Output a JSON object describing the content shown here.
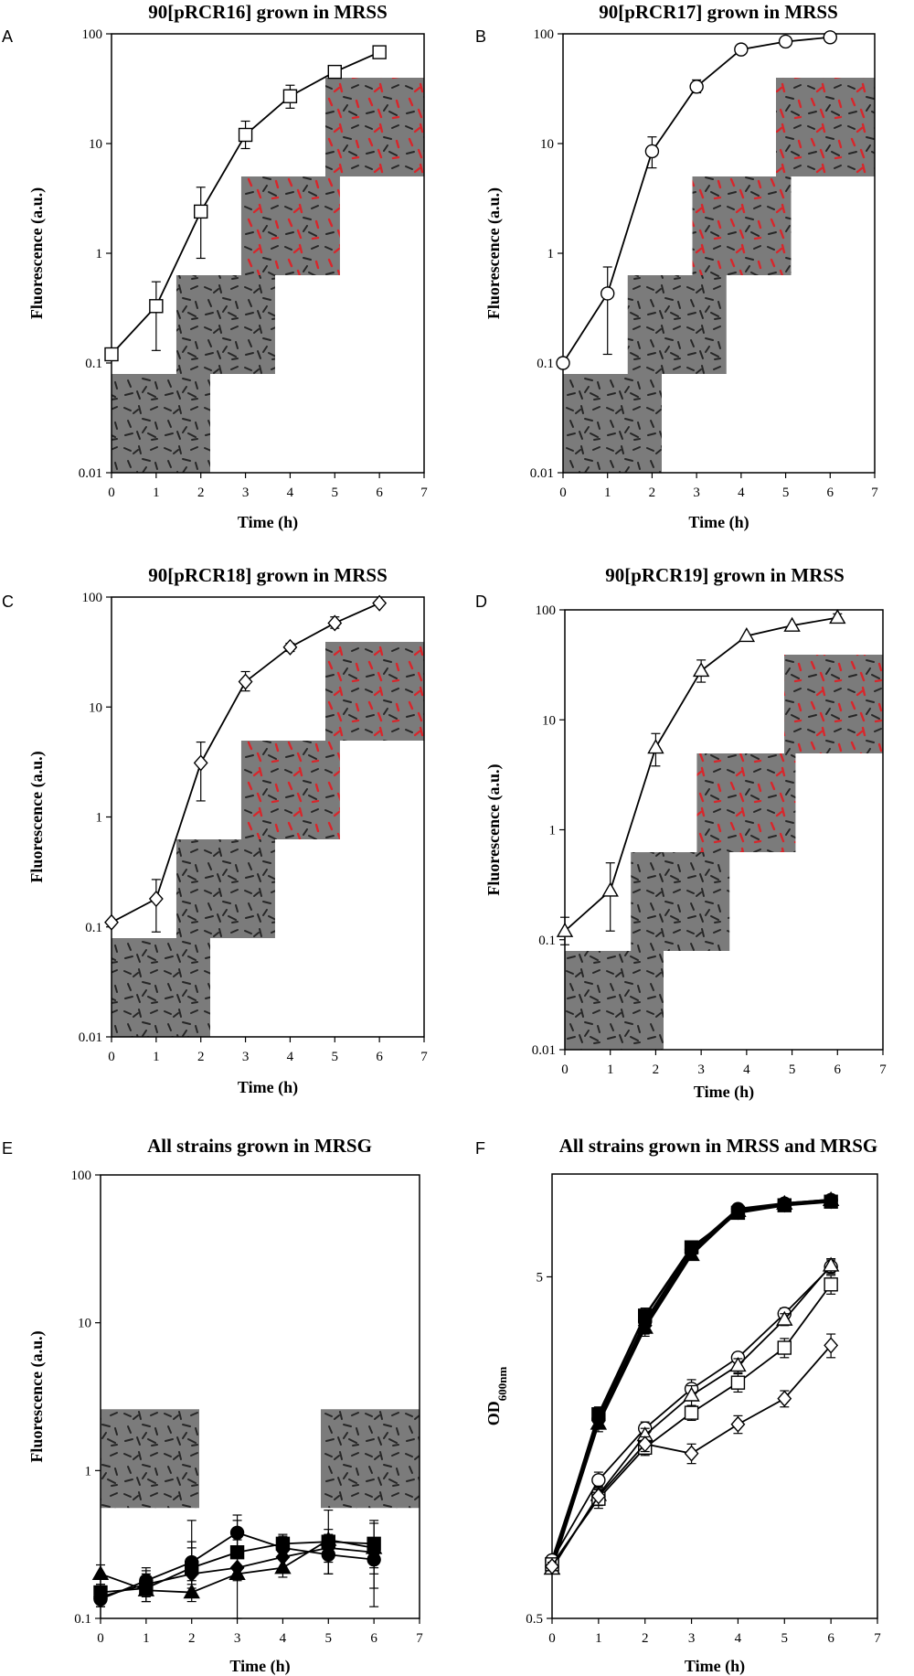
{
  "figure": {
    "colors": {
      "line": "#000000",
      "filled_marker": "#000000",
      "open_marker": "#ffffff",
      "micro_bg": "#7b7b7b",
      "cell_dark": "#262626",
      "cell_red": "#d8262b"
    }
  },
  "chart_data": [
    {
      "id": "A",
      "panel_label": "A",
      "type": "line",
      "title": "90[pRCR16] grown in MRSS",
      "xlabel": "Time (h)",
      "ylabel": "Fluorescence (a.u.)",
      "xlim": [
        0,
        7
      ],
      "ylim": [
        0.01,
        100
      ],
      "yscale": "log",
      "x_ticks": [
        0,
        1,
        2,
        3,
        4,
        5,
        6,
        7
      ],
      "x_tick_labels": [
        "0",
        "1",
        "2",
        "3",
        "4",
        "5",
        "6",
        "7"
      ],
      "y_ticks": [
        0.01,
        0.1,
        1,
        10,
        100
      ],
      "y_tick_labels": [
        "0.01",
        "0.1",
        "1",
        "10",
        "100"
      ],
      "series": [
        {
          "name": "90[pRCR16]",
          "marker": "square",
          "filled": false,
          "x": [
            0,
            1,
            2,
            3,
            4,
            5,
            6
          ],
          "values": [
            0.12,
            0.33,
            2.4,
            12,
            27,
            45,
            68
          ],
          "err_low": [
            0.12,
            0.13,
            0.9,
            9,
            21,
            45,
            68
          ],
          "err_high": [
            0.12,
            0.55,
            4.0,
            16,
            34,
            45,
            68
          ]
        }
      ],
      "micrographs": [
        {
          "time": 0,
          "red": 0
        },
        {
          "time": 1,
          "red": 0
        },
        {
          "time": 2,
          "red": 0.45
        },
        {
          "time": 6,
          "red": 0.9
        }
      ]
    },
    {
      "id": "B",
      "panel_label": "B",
      "type": "line",
      "title": "90[pRCR17] grown in MRSS",
      "xlabel": "Time (h)",
      "ylabel": "Fluorescence (a.u.)",
      "xlim": [
        0,
        7
      ],
      "ylim": [
        0.01,
        100
      ],
      "yscale": "log",
      "x_ticks": [
        0,
        1,
        2,
        3,
        4,
        5,
        6,
        7
      ],
      "x_tick_labels": [
        "0",
        "1",
        "2",
        "3",
        "4",
        "5",
        "6",
        "7"
      ],
      "y_ticks": [
        0.01,
        0.1,
        1,
        10,
        100
      ],
      "y_tick_labels": [
        "0.01",
        "0.1",
        "1",
        "10",
        "100"
      ],
      "series": [
        {
          "name": "90[pRCR17]",
          "marker": "circle",
          "filled": false,
          "x": [
            0,
            1,
            2,
            3,
            4,
            5,
            6
          ],
          "values": [
            0.1,
            0.43,
            8.5,
            33,
            72,
            85,
            93
          ],
          "err_low": [
            0.1,
            0.12,
            6,
            29,
            72,
            85,
            85
          ],
          "err_high": [
            0.1,
            0.75,
            11.5,
            38,
            72,
            85,
            100
          ]
        }
      ],
      "micrographs": [
        {
          "time": 0,
          "red": 0
        },
        {
          "time": 1,
          "red": 0.05
        },
        {
          "time": 3,
          "red": 0.8
        },
        {
          "time": 6,
          "red": 0.95
        }
      ]
    },
    {
      "id": "C",
      "panel_label": "C",
      "type": "line",
      "title": "90[pRCR18] grown in MRSS",
      "xlabel": "Time (h)",
      "ylabel": "Fluorescence (a.u.)",
      "xlim": [
        0,
        7
      ],
      "ylim": [
        0.01,
        100
      ],
      "yscale": "log",
      "x_ticks": [
        0,
        1,
        2,
        3,
        4,
        5,
        6,
        7
      ],
      "x_tick_labels": [
        "0",
        "1",
        "2",
        "3",
        "4",
        "5",
        "6",
        "7"
      ],
      "y_ticks": [
        0.01,
        0.1,
        1,
        10,
        100
      ],
      "y_tick_labels": [
        "0.01",
        "0.1",
        "1",
        "10",
        "100"
      ],
      "series": [
        {
          "name": "90[pRCR18]",
          "marker": "diamond",
          "filled": false,
          "x": [
            0,
            1,
            2,
            3,
            4,
            5,
            6
          ],
          "values": [
            0.11,
            0.18,
            3.1,
            17,
            35,
            58,
            88
          ],
          "err_low": [
            0.11,
            0.09,
            1.4,
            14,
            32,
            52,
            88
          ],
          "err_high": [
            0.11,
            0.27,
            4.8,
            21,
            38,
            66,
            88
          ]
        }
      ],
      "micrographs": [
        {
          "time": 0,
          "red": 0
        },
        {
          "time": 1,
          "red": 0
        },
        {
          "time": 3,
          "red": 0.5
        },
        {
          "time": 6,
          "red": 1
        }
      ]
    },
    {
      "id": "D",
      "panel_label": "D",
      "type": "line",
      "title": "90[pRCR19] grown in MRSS",
      "xlabel": "Time (h)",
      "ylabel": "Fluorescence (a.u.)",
      "xlim": [
        0,
        7
      ],
      "ylim": [
        0.01,
        100
      ],
      "yscale": "log",
      "x_ticks": [
        0,
        1,
        2,
        3,
        4,
        5,
        6,
        7
      ],
      "x_tick_labels": [
        "0",
        "1",
        "2",
        "3",
        "4",
        "5",
        "6",
        "7"
      ],
      "y_ticks": [
        0.01,
        0.1,
        1,
        10,
        100
      ],
      "y_tick_labels": [
        "0.01",
        "0.1",
        "1",
        "10",
        "100"
      ],
      "series": [
        {
          "name": "90[pRCR19]",
          "marker": "triangle",
          "filled": false,
          "x": [
            0,
            1,
            2,
            3,
            4,
            5,
            6
          ],
          "values": [
            0.12,
            0.28,
            5.6,
            28,
            58,
            72,
            85
          ],
          "err_low": [
            0.09,
            0.12,
            3.8,
            22,
            58,
            72,
            78
          ],
          "err_high": [
            0.16,
            0.5,
            7.5,
            35,
            58,
            72,
            92
          ]
        }
      ],
      "micrographs": [
        {
          "time": 0,
          "red": 0
        },
        {
          "time": 1,
          "red": 0.1
        },
        {
          "time": 3,
          "red": 0.85
        },
        {
          "time": 6,
          "red": 0.7
        }
      ]
    },
    {
      "id": "E",
      "panel_label": "E",
      "type": "line",
      "title": "All strains grown in MRSG",
      "xlabel": "Time (h)",
      "ylabel": "Fluorescence (a.u.)",
      "xlim": [
        0,
        7
      ],
      "ylim": [
        0.1,
        100
      ],
      "yscale": "log",
      "x_ticks": [
        0,
        1,
        2,
        3,
        4,
        5,
        6,
        7
      ],
      "x_tick_labels": [
        "0",
        "1",
        "2",
        "3",
        "4",
        "5",
        "6",
        "7"
      ],
      "y_ticks": [
        0.1,
        1,
        10,
        100
      ],
      "y_tick_labels": [
        "0.1",
        "1",
        "10",
        "100"
      ],
      "series": [
        {
          "name": "circle",
          "marker": "circle",
          "filled": true,
          "x": [
            0,
            1,
            2,
            3,
            4,
            5,
            6
          ],
          "values": [
            0.135,
            0.18,
            0.24,
            0.38,
            0.3,
            0.27,
            0.25
          ],
          "err_low": [
            0.12,
            0.15,
            0.18,
            0.3,
            0.25,
            0.2,
            0.16
          ],
          "err_high": [
            0.15,
            0.22,
            0.33,
            0.46,
            0.36,
            0.34,
            0.34
          ]
        },
        {
          "name": "square",
          "marker": "square",
          "filled": true,
          "x": [
            0,
            1,
            2,
            3,
            4,
            5,
            6
          ],
          "values": [
            0.15,
            0.16,
            0.22,
            0.28,
            0.32,
            0.33,
            0.32
          ],
          "err_low": [
            0.13,
            0.13,
            0.17,
            0.22,
            0.27,
            0.26,
            0.2
          ],
          "err_high": [
            0.17,
            0.21,
            0.3,
            0.34,
            0.37,
            0.4,
            0.44
          ]
        },
        {
          "name": "triangle",
          "marker": "triangle",
          "filled": true,
          "x": [
            0,
            1,
            2,
            3,
            4,
            5,
            6
          ],
          "values": [
            0.2,
            0.155,
            0.15,
            0.2,
            0.22,
            0.34,
            0.3
          ],
          "err_low": [
            0.17,
            0.13,
            0.13,
            0.1,
            0.19,
            0.2,
            0.12
          ],
          "err_high": [
            0.23,
            0.19,
            0.46,
            0.5,
            0.26,
            0.54,
            0.46
          ]
        },
        {
          "name": "diamond",
          "marker": "diamond",
          "filled": true,
          "x": [
            0,
            1,
            2,
            3,
            4,
            5,
            6
          ],
          "values": [
            0.14,
            0.17,
            0.2,
            0.22,
            0.26,
            0.3,
            0.28
          ],
          "err_low": [
            0.12,
            0.14,
            0.16,
            0.18,
            0.22,
            0.24,
            0.22
          ],
          "err_high": [
            0.16,
            0.2,
            0.25,
            0.27,
            0.31,
            0.37,
            0.35
          ]
        }
      ],
      "micrographs": [
        {
          "time": 0,
          "red": 0
        },
        {
          "time": 6,
          "red": 0
        }
      ]
    },
    {
      "id": "F",
      "panel_label": "F",
      "type": "line",
      "title": "All strains grown in MRSS and MRSG",
      "xlabel": "Time (h)",
      "ylabel_main": "OD",
      "ylabel_sub": "600nm",
      "xlim": [
        0,
        7
      ],
      "ylim": [
        0.5,
        10
      ],
      "yscale": "log",
      "x_ticks": [
        0,
        1,
        2,
        3,
        4,
        5,
        6,
        7
      ],
      "x_tick_labels": [
        "0",
        "1",
        "2",
        "3",
        "4",
        "5",
        "6",
        "7"
      ],
      "y_ticks": [
        0.5,
        5
      ],
      "y_tick_labels": [
        "0.5",
        "5"
      ],
      "series": [
        {
          "name": "filled-circle",
          "marker": "circle",
          "filled": true,
          "x": [
            0,
            1,
            2,
            3,
            4,
            5,
            6
          ],
          "values": [
            0.74,
            1.92,
            3.7,
            6.0,
            7.9,
            8.2,
            8.4
          ],
          "err_low": [
            0.72,
            1.82,
            3.5,
            5.8,
            7.7,
            8.0,
            8.2
          ],
          "err_high": [
            0.76,
            2.02,
            3.9,
            6.2,
            8.1,
            8.4,
            8.6
          ]
        },
        {
          "name": "filled-square",
          "marker": "square",
          "filled": true,
          "x": [
            0,
            1,
            2,
            3,
            4,
            5,
            6
          ],
          "values": [
            0.72,
            1.98,
            3.85,
            6.1,
            7.7,
            8.1,
            8.3
          ],
          "err_low": [
            0.7,
            1.88,
            3.65,
            5.9,
            7.5,
            7.9,
            8.1
          ],
          "err_high": [
            0.74,
            2.08,
            4.05,
            6.3,
            7.9,
            8.3,
            8.5
          ]
        },
        {
          "name": "filled-triangle",
          "marker": "triangle",
          "filled": true,
          "x": [
            0,
            1,
            2,
            3,
            4,
            5,
            6
          ],
          "values": [
            0.7,
            1.86,
            3.55,
            5.8,
            7.8,
            8.2,
            8.4
          ],
          "err_low": [
            0.68,
            1.76,
            3.35,
            5.6,
            7.6,
            8.0,
            8.2
          ],
          "err_high": [
            0.72,
            1.96,
            3.75,
            6.0,
            8.0,
            8.4,
            8.6
          ]
        },
        {
          "name": "filled-diamond",
          "marker": "diamond",
          "filled": true,
          "x": [
            0,
            1,
            2,
            3,
            4,
            5,
            6
          ],
          "values": [
            0.73,
            1.9,
            3.6,
            5.9,
            7.75,
            8.15,
            8.35
          ],
          "err_low": [
            0.71,
            1.8,
            3.4,
            5.7,
            7.55,
            7.95,
            8.15
          ],
          "err_high": [
            0.75,
            2.0,
            3.8,
            6.1,
            7.95,
            8.35,
            8.55
          ]
        },
        {
          "name": "open-circle",
          "marker": "circle",
          "filled": false,
          "x": [
            0,
            1,
            2,
            3,
            4,
            5,
            6
          ],
          "values": [
            0.74,
            1.27,
            1.8,
            2.35,
            2.9,
            3.9,
            5.35
          ],
          "err_low": [
            0.72,
            1.2,
            1.72,
            2.2,
            2.8,
            3.75,
            5.1
          ],
          "err_high": [
            0.76,
            1.34,
            1.88,
            2.5,
            3.0,
            4.05,
            5.6
          ]
        },
        {
          "name": "open-triangle",
          "marker": "triangle",
          "filled": false,
          "x": [
            0,
            1,
            2,
            3,
            4,
            5,
            6
          ],
          "values": [
            0.7,
            1.15,
            1.72,
            2.25,
            2.75,
            3.75,
            5.4
          ],
          "err_low": [
            0.68,
            1.08,
            1.64,
            2.1,
            2.62,
            3.6,
            5.15
          ],
          "err_high": [
            0.72,
            1.22,
            1.8,
            2.4,
            2.88,
            3.9,
            5.65
          ]
        },
        {
          "name": "open-square",
          "marker": "square",
          "filled": false,
          "x": [
            0,
            1,
            2,
            3,
            4,
            5,
            6
          ],
          "values": [
            0.72,
            1.12,
            1.58,
            2.0,
            2.45,
            3.1,
            4.75
          ],
          "err_low": [
            0.7,
            1.05,
            1.5,
            1.9,
            2.3,
            2.9,
            4.45
          ],
          "err_high": [
            0.74,
            1.19,
            1.66,
            2.1,
            2.6,
            3.3,
            5.05
          ]
        },
        {
          "name": "open-diamond",
          "marker": "diamond",
          "filled": false,
          "x": [
            0,
            1,
            2,
            3,
            4,
            5,
            6
          ],
          "values": [
            0.71,
            1.14,
            1.62,
            1.52,
            1.85,
            2.2,
            3.15
          ],
          "err_low": [
            0.69,
            1.07,
            1.54,
            1.42,
            1.74,
            2.08,
            2.9
          ],
          "err_high": [
            0.73,
            1.21,
            1.7,
            1.62,
            1.96,
            2.32,
            3.4
          ]
        }
      ]
    }
  ]
}
